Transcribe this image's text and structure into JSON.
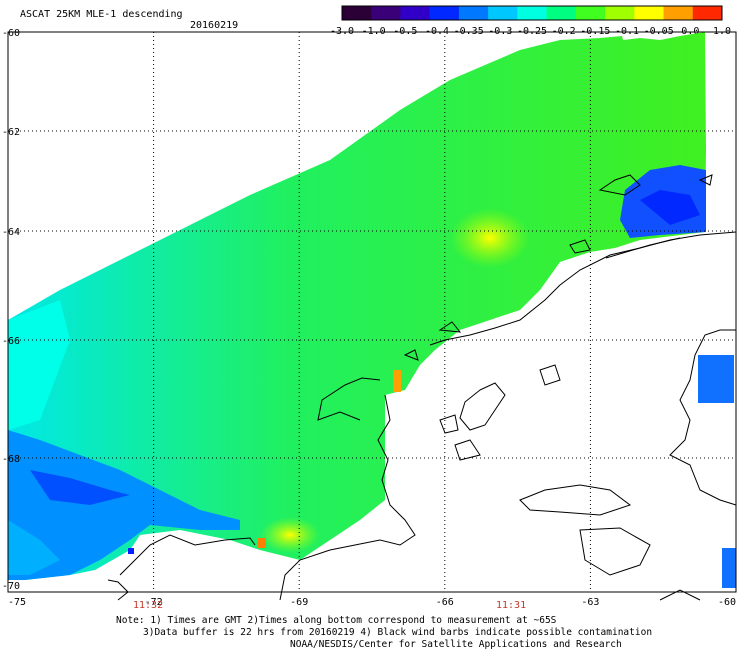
{
  "header": {
    "title": "ASCAT 25KM MLE-1 descending",
    "date": "20160219"
  },
  "colorbar": {
    "labels": [
      "-3.0",
      "-1.0",
      "-0.5",
      "-0.4",
      "-0.35",
      "-0.3",
      "-0.25",
      "-0.2",
      "-0.15",
      "-0.1",
      "-0.05",
      "0.0",
      "1.0"
    ],
    "colors": [
      "#2a0036",
      "#3a0078",
      "#3000c8",
      "#0028ff",
      "#0078ff",
      "#00c8ff",
      "#00ffe0",
      "#00ff80",
      "#40ff20",
      "#a0ff00",
      "#ffff00",
      "#ffa000",
      "#ff2800"
    ]
  },
  "axes": {
    "x_labels": [
      "-75",
      "-72",
      "-69",
      "-66",
      "-63",
      "-60"
    ],
    "y_labels": [
      "-60",
      "-62",
      "-64",
      "-66",
      "-68",
      "-70"
    ]
  },
  "times": [
    "11:32",
    "11:31"
  ],
  "notes": [
    "Note: 1) Times are GMT 2)Times along bottom correspond to measurement at ~65S",
    "3)Data buffer is 22 hrs from 20160219 4) Black wind barbs indicate possible contamination",
    "NOAA/NESDIS/Center for Satellite Applications and Research"
  ]
}
